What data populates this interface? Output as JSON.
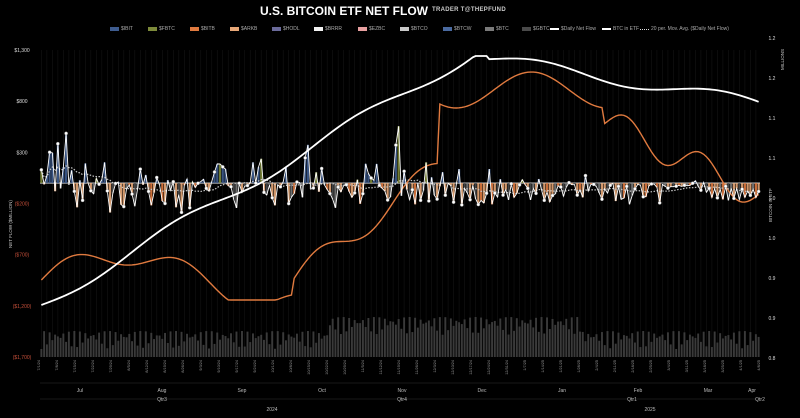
{
  "title": "U.S. BITCOIN ETF NET FLOW",
  "subtitle": "TRADER T@THEPFUND",
  "colors": {
    "background": "#000000",
    "IBIT": "#3e5c8f",
    "FBTC": "#7d8a3a",
    "BITB": "#e07a3f",
    "ARKB": "#e8a878",
    "HODL": "#6a6a9a",
    "BRRR": "#f2f2f2",
    "EZBC": "#e8a0a0",
    "BTCO": "#c9c9c9",
    "BTCW": "#4a6aa0",
    "BTC": "#7a7a7a",
    "GBTC": "#4a4a4a",
    "daily_line": "#ffffff",
    "btc_in_etf": "#ffffff",
    "moving_avg": "#c8c8c8",
    "btc_price": "#e07a3f"
  },
  "chart_data": {
    "type": "bar",
    "title": "U.S. BITCOIN ETF NET FLOW",
    "ylabel": "NET FLOW ($MILLION)",
    "y2label": "BITCOIN IN ETF",
    "y3label": "MILLIONS",
    "left_ticks": [
      "$1,300",
      "$800",
      "$300",
      "($200)",
      "($700)",
      "($1,200)",
      "($1,700)"
    ],
    "right_ticks": [
      "1.2",
      "1.2",
      "1.1",
      "1.1",
      "1.0",
      "1.0",
      "0.9",
      "0.9",
      "0.8"
    ],
    "ylim": [
      -1700,
      1300
    ],
    "legend": [
      "$IBIT",
      "$FBTC",
      "$BITB",
      "$ARKB",
      "$HODL",
      "$BRRR",
      "$EZBC",
      "$BTCO",
      "$BTCW",
      "$BTC",
      "$GBTC",
      "$Daily Net Flow",
      "BTC in ETF",
      "20 per. Mov. Avg. ($Daily Net Flow)"
    ],
    "month_labels": [
      "Jul",
      "Aug",
      "Sep",
      "Oct",
      "Nov",
      "Dec",
      "Jan",
      "Feb",
      "Mar",
      "Apr"
    ],
    "quarter_labels": [
      "Qtr3",
      "Qtr4",
      "Qtr1",
      "Qtr2"
    ],
    "year_labels": [
      "2024",
      "2025"
    ],
    "x_tick_labels": [
      "7/1/24",
      "7/8/24",
      "7/15/24",
      "7/22/24",
      "7/29/24",
      "8/5/24",
      "8/12/24",
      "8/19/24",
      "8/26/24",
      "9/3/24",
      "9/10/24",
      "9/17/24",
      "9/24/24",
      "10/1/24",
      "10/8/24",
      "10/15/24",
      "10/22/24",
      "10/29/24",
      "11/5/24",
      "11/12/24",
      "11/19/24",
      "11/26/24",
      "12/3/24",
      "12/10/24",
      "12/17/24",
      "12/24/24",
      "12/31/24",
      "1/7/25",
      "1/14/25",
      "1/21/25",
      "1/28/25",
      "2/4/25",
      "2/11/25",
      "2/18/25",
      "2/25/25",
      "3/4/25",
      "3/11/25",
      "3/18/25",
      "3/25/25",
      "4/1/25",
      "4/8/25"
    ],
    "daily_net_flow": [
      129,
      -13,
      72,
      301,
      295,
      -80,
      384,
      -53,
      155,
      485,
      -18,
      124,
      -81,
      -237,
      27,
      -169,
      192,
      -1,
      -76,
      -105,
      45,
      -12,
      33,
      202,
      -77,
      -288,
      -100,
      -4,
      10,
      -211,
      -230,
      -54,
      -19,
      -108,
      -227,
      -57,
      136,
      -17,
      79,
      -82,
      -218,
      -93,
      54,
      -17,
      -176,
      -200,
      28,
      -71,
      13,
      -237,
      -113,
      -287,
      -22,
      39,
      -242,
      12,
      -43,
      -2,
      14,
      37,
      -52,
      -80,
      15,
      108,
      187,
      186,
      158,
      136,
      -27,
      -36,
      -161,
      -243,
      -2,
      -92,
      -31,
      -25,
      -1,
      202,
      -1,
      155,
      237,
      -91,
      -117,
      -19,
      -144,
      -218,
      -18,
      -37,
      12,
      153,
      -201,
      -138,
      -103,
      10,
      4,
      -140,
      246,
      373,
      -59,
      -49,
      105,
      -85,
      142,
      -18,
      -63,
      -103,
      -157,
      -242,
      -40,
      -86,
      -25,
      -17,
      -84,
      -140,
      -97,
      33,
      -203,
      -104,
      188,
      93,
      49,
      27,
      187,
      -23,
      -51,
      -79,
      -166,
      -136,
      47,
      371,
      555,
      -125,
      115,
      -62,
      -162,
      -66,
      -208,
      3,
      -169,
      -72,
      202,
      -175,
      56,
      -119,
      -157,
      -32,
      106,
      -119,
      -1,
      -26,
      -187,
      -12,
      136,
      -214,
      -52,
      -98,
      -163,
      -21,
      -152,
      -210,
      -170,
      -195,
      -100,
      137,
      -208,
      -98,
      -137,
      37,
      -118,
      -64,
      -165,
      -7,
      -140,
      -101,
      -18,
      33,
      -14,
      -52,
      -165,
      -53,
      -101,
      39,
      -65,
      -169,
      -89,
      -184,
      -122,
      -107,
      -28,
      -39,
      -129,
      -40,
      4,
      -16,
      -16,
      -118,
      -66,
      -140,
      73,
      -78,
      -12,
      -13,
      -36,
      -98,
      -158,
      -56,
      -98,
      -23,
      -2,
      -176,
      -33,
      -159,
      -147,
      -33,
      -208,
      -120,
      -57,
      -13,
      -21,
      -134,
      -133,
      -31,
      -9,
      -11,
      -42,
      -194,
      -14,
      -33,
      -50,
      -36,
      -35,
      -31,
      -24,
      -33,
      -22,
      -26,
      -24,
      -2,
      22,
      -31,
      -70,
      6,
      -90,
      -53,
      -141,
      -54,
      -145,
      -62,
      -160,
      -32,
      -170,
      -52,
      -150,
      -54,
      -161,
      -60,
      -140,
      -80,
      -120,
      -62,
      -143,
      -82
    ],
    "series": [
      {
        "name": "$Daily Net Flow"
      },
      {
        "name": "BTC in ETF"
      },
      {
        "name": "20 per. Mov. Avg. ($Daily Net Flow)"
      }
    ]
  }
}
